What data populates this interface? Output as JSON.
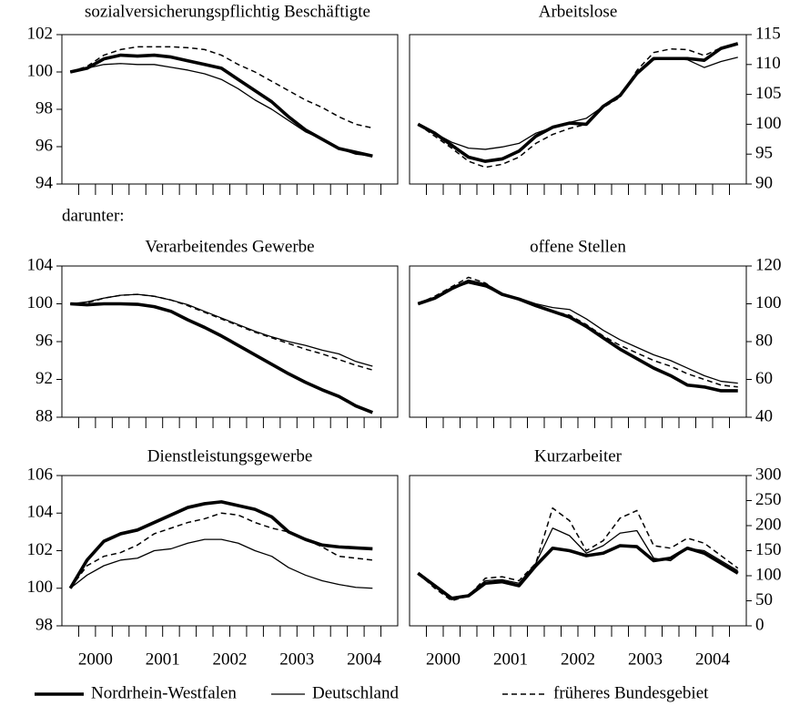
{
  "note": "darunter:",
  "categories": [
    "2000",
    null,
    null,
    null,
    "2001",
    null,
    null,
    null,
    "2002",
    null,
    null,
    null,
    "2003",
    null,
    null,
    null,
    "2004",
    null,
    null,
    null
  ],
  "legend": [
    "Nordrhein-Westfalen",
    "Deutschland",
    "früheres Bundesgebiet"
  ],
  "chart_data": [
    {
      "type": "line",
      "title": "sozialversicherungspflichtig Beschäftigte",
      "y_axis": "left",
      "ylim": [
        94,
        102
      ],
      "yticks": [
        94,
        96,
        98,
        100,
        102
      ],
      "series": [
        {
          "values": [
            100.0,
            100.2,
            100.7,
            100.9,
            100.85,
            100.9,
            100.8,
            100.6,
            100.4,
            100.2,
            99.6,
            99.0,
            98.4,
            97.6,
            96.9,
            96.4,
            95.9,
            95.7,
            95.5,
            null
          ]
        },
        {
          "values": [
            100.0,
            100.2,
            100.4,
            100.45,
            100.4,
            100.4,
            100.25,
            100.1,
            99.9,
            99.6,
            99.1,
            98.5,
            98.0,
            97.4,
            96.8,
            96.4,
            95.9,
            95.6,
            95.5,
            null
          ]
        },
        {
          "values": [
            100.0,
            100.3,
            100.9,
            101.2,
            101.35,
            101.35,
            101.35,
            101.3,
            101.2,
            100.9,
            100.4,
            100.0,
            99.5,
            99.0,
            98.5,
            98.1,
            97.6,
            97.2,
            97.0,
            null
          ]
        }
      ]
    },
    {
      "type": "line",
      "title": "Arbeitslose",
      "y_axis": "right",
      "ylim": [
        90,
        115
      ],
      "yticks": [
        90,
        95,
        100,
        105,
        110,
        115
      ],
      "series": [
        {
          "values": [
            100,
            98.5,
            96.5,
            94.5,
            93.8,
            94.2,
            95.5,
            98,
            99.5,
            100.2,
            100,
            103,
            104.8,
            108.5,
            111,
            111,
            111,
            110.7,
            112.7,
            113.5
          ]
        },
        {
          "values": [
            100,
            98.5,
            97,
            96,
            95.8,
            96.2,
            96.8,
            98.5,
            99.5,
            100.3,
            101,
            103,
            105,
            108.5,
            110.8,
            111,
            110.8,
            109.5,
            110.5,
            111.2
          ]
        },
        {
          "values": [
            100,
            98,
            96,
            93.8,
            92.8,
            93.3,
            94.5,
            96.8,
            98.3,
            99.3,
            100,
            102.8,
            104.5,
            109,
            112,
            112.6,
            112.5,
            111.5,
            112.8,
            113.6
          ]
        }
      ]
    },
    {
      "type": "line",
      "title": "Verarbeitendes Gewerbe",
      "y_axis": "left",
      "ylim": [
        88,
        104
      ],
      "yticks": [
        88,
        92,
        96,
        100,
        104
      ],
      "series": [
        {
          "values": [
            100,
            99.9,
            100,
            100,
            99.95,
            99.7,
            99.2,
            98.3,
            97.5,
            96.6,
            95.6,
            94.6,
            93.6,
            92.6,
            91.7,
            90.9,
            90.2,
            89.2,
            88.5,
            null
          ]
        },
        {
          "values": [
            100,
            100.2,
            100.6,
            100.9,
            101.0,
            100.8,
            100.4,
            99.9,
            99.2,
            98.5,
            97.8,
            97.1,
            96.5,
            96.0,
            95.6,
            95.1,
            94.7,
            93.9,
            93.4,
            null
          ]
        },
        {
          "values": [
            100,
            100.1,
            100.6,
            100.9,
            101.0,
            100.8,
            100.4,
            99.8,
            99.1,
            98.4,
            97.7,
            97.0,
            96.4,
            95.8,
            95.2,
            94.7,
            94.1,
            93.5,
            93.0,
            null
          ]
        }
      ]
    },
    {
      "type": "line",
      "title": "offene Stellen",
      "y_axis": "right",
      "ylim": [
        40,
        120
      ],
      "yticks": [
        40,
        60,
        80,
        100,
        120
      ],
      "series": [
        {
          "values": [
            100,
            103,
            108,
            112,
            110,
            105,
            102.5,
            99,
            96,
            93,
            88,
            82,
            76,
            71,
            66,
            62,
            57,
            56,
            54,
            54
          ]
        },
        {
          "values": [
            100,
            103,
            108,
            111,
            109,
            105,
            103,
            100,
            98,
            97,
            92,
            86,
            81,
            77,
            73,
            70,
            66,
            62,
            59,
            58
          ]
        },
        {
          "values": [
            100,
            104,
            109,
            114,
            111,
            105,
            102,
            99,
            96,
            94,
            89,
            83,
            78,
            74,
            70,
            67,
            63,
            60,
            57,
            56
          ]
        }
      ]
    },
    {
      "type": "line",
      "title": "Dienstleistungsgewerbe",
      "y_axis": "left",
      "ylim": [
        98,
        106
      ],
      "yticks": [
        98,
        100,
        102,
        104,
        106
      ],
      "series": [
        {
          "values": [
            100,
            101.5,
            102.5,
            102.9,
            103.1,
            103.5,
            103.9,
            104.3,
            104.5,
            104.6,
            104.4,
            104.2,
            103.8,
            103.0,
            102.6,
            102.3,
            102.2,
            102.15,
            102.1,
            null
          ]
        },
        {
          "values": [
            100,
            100.7,
            101.2,
            101.5,
            101.6,
            102.0,
            102.1,
            102.4,
            102.6,
            102.6,
            102.4,
            102.0,
            101.7,
            101.1,
            100.7,
            100.4,
            100.2,
            100.05,
            100.0,
            null
          ]
        },
        {
          "values": [
            100,
            101.2,
            101.7,
            101.9,
            102.3,
            102.9,
            103.2,
            103.5,
            103.7,
            104.0,
            103.9,
            103.5,
            103.2,
            103.0,
            102.6,
            102.2,
            101.7,
            101.6,
            101.5,
            null
          ]
        }
      ]
    },
    {
      "type": "line",
      "title": "Kurzarbeiter",
      "y_axis": "right",
      "ylim": [
        0,
        300
      ],
      "yticks": [
        0,
        50,
        100,
        150,
        200,
        250,
        300
      ],
      "series": [
        {
          "values": [
            105,
            80,
            55,
            60,
            85,
            88,
            80,
            120,
            155,
            150,
            140,
            145,
            160,
            158,
            130,
            135,
            155,
            145,
            125,
            105
          ]
        },
        {
          "values": [
            105,
            80,
            52,
            62,
            90,
            92,
            85,
            125,
            195,
            180,
            145,
            160,
            185,
            190,
            135,
            130,
            155,
            150,
            130,
            110
          ]
        },
        {
          "values": [
            105,
            75,
            50,
            60,
            95,
            98,
            90,
            125,
            235,
            210,
            150,
            170,
            215,
            230,
            160,
            155,
            175,
            165,
            140,
            115
          ]
        }
      ]
    }
  ]
}
